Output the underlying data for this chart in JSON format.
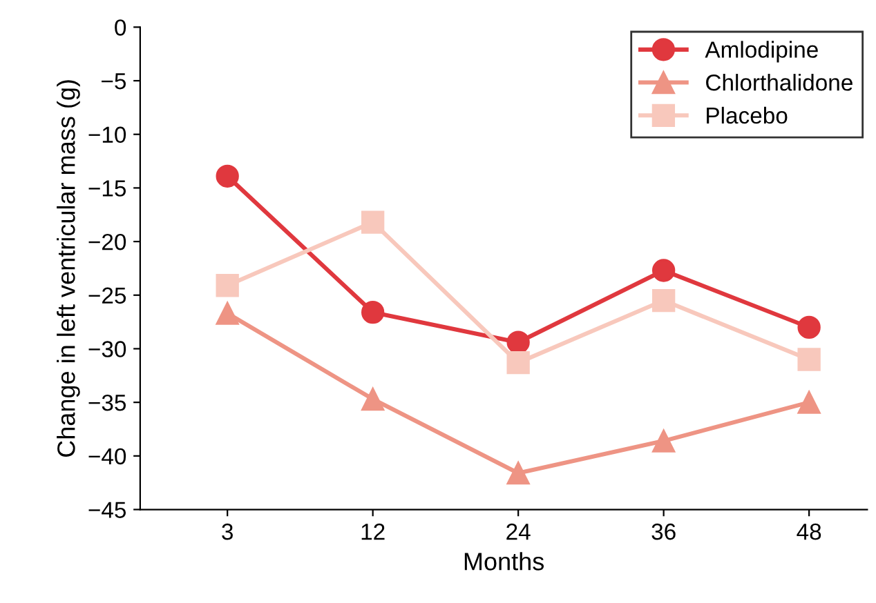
{
  "chart_data": {
    "type": "line",
    "xlabel": "Months",
    "ylabel": "Change in left ventricular mass (g)",
    "categories": [
      "3",
      "12",
      "24",
      "36",
      "48"
    ],
    "series": [
      {
        "name": "Amlodipine",
        "color": "#e0383e",
        "marker": "circle",
        "values": [
          -13.9,
          -26.6,
          -29.4,
          -22.7,
          -28.0
        ]
      },
      {
        "name": "Chlorthalidone",
        "color": "#ee9484",
        "marker": "triangle",
        "values": [
          -26.7,
          -34.7,
          -41.6,
          -38.6,
          -35.0
        ]
      },
      {
        "name": "Placebo",
        "color": "#f8c8bc",
        "marker": "square",
        "values": [
          -24.1,
          -18.2,
          -31.3,
          -25.5,
          -31.0
        ]
      }
    ],
    "ylim": [
      -45,
      0
    ],
    "yticks": [
      -45,
      -40,
      -35,
      -30,
      -25,
      -20,
      -15,
      -10,
      -5,
      0
    ],
    "grid": false,
    "legend": "top right",
    "line_style": "solid"
  }
}
